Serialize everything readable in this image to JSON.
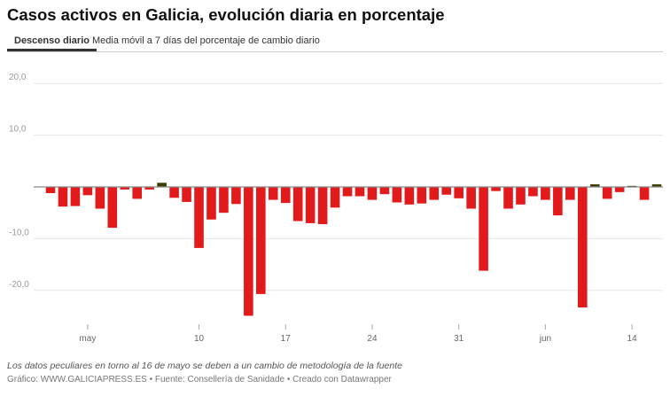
{
  "title": "Casos activos en Galicia, evolución diaria en porcentaje",
  "tabs": [
    {
      "label": "Descenso diario",
      "active": true
    },
    {
      "label": "Media móvil a 7 días del porcentaje de cambio diario",
      "active": false
    }
  ],
  "note": "Los datos peculiares en torno al 16 de mayo se deben a un cambio de metodología de la fuente",
  "footer": "Gráfico: WWW.GALICIAPRESS.ES • Fuente: Consellería de Sanidade • Creado con Datawrapper",
  "chart_data": {
    "type": "bar",
    "colors": {
      "negative": "#e31a1c",
      "positive": "#3b3b00"
    },
    "ylim": [
      -26,
      22
    ],
    "grid": true,
    "y_ticks": [
      {
        "value": 20,
        "label": "20,0"
      },
      {
        "value": 10,
        "label": "10,0"
      },
      {
        "value": -10,
        "label": "-10,0"
      },
      {
        "value": -20,
        "label": "-20,0"
      }
    ],
    "x_ticks": [
      {
        "date": "2020-05-01",
        "label": "may"
      },
      {
        "date": "2020-05-10",
        "label": "10"
      },
      {
        "date": "2020-05-17",
        "label": "17"
      },
      {
        "date": "2020-05-24",
        "label": "24"
      },
      {
        "date": "2020-05-31",
        "label": "31"
      },
      {
        "date": "2020-06-07",
        "label": "jun"
      },
      {
        "date": "2020-06-14",
        "label": "14"
      }
    ],
    "start_date": "2020-04-28",
    "values": [
      -1.2,
      -3.8,
      -3.7,
      -1.6,
      -4.2,
      -7.9,
      -0.5,
      -2.3,
      -0.5,
      0.8,
      -2.1,
      -2.9,
      -11.8,
      -6.3,
      -5.0,
      -3.3,
      -24.9,
      -20.7,
      -2.5,
      -3.1,
      -6.6,
      -7.0,
      -7.2,
      -4.0,
      -1.8,
      -1.8,
      -2.5,
      -1.4,
      -3.0,
      -3.4,
      -3.2,
      -2.5,
      -1.5,
      -2.2,
      -4.2,
      -16.2,
      -0.8,
      -4.2,
      -3.4,
      -1.8,
      -2.5,
      -5.5,
      -2.5,
      -23.3,
      0.5,
      -2.3,
      -1.0,
      0.2,
      -2.5,
      0.5
    ]
  }
}
